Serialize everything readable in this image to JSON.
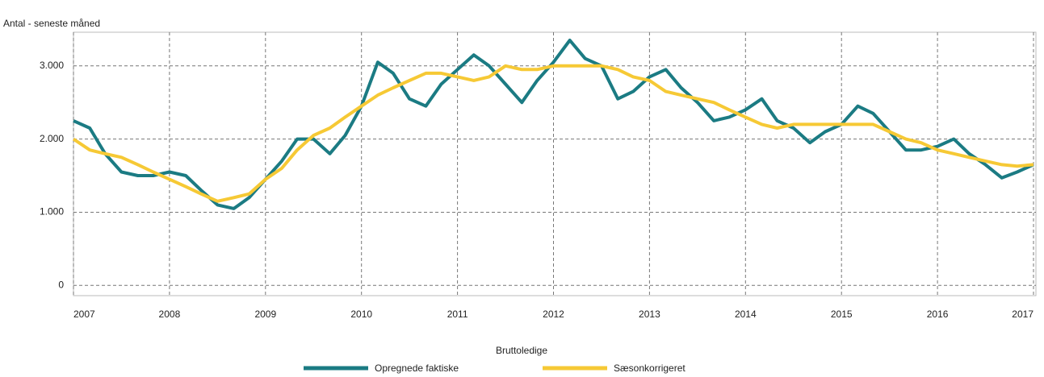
{
  "chart_data": {
    "type": "line",
    "y_label": "Antal - seneste måned",
    "legend_title": "Bruttoledige",
    "x": [
      2007,
      2007.17,
      2007.33,
      2007.5,
      2007.67,
      2007.83,
      2008,
      2008.17,
      2008.33,
      2008.5,
      2008.67,
      2008.83,
      2009,
      2009.17,
      2009.33,
      2009.5,
      2009.67,
      2009.83,
      2010,
      2010.17,
      2010.33,
      2010.5,
      2010.67,
      2010.83,
      2011,
      2011.17,
      2011.33,
      2011.5,
      2011.67,
      2011.83,
      2012,
      2012.17,
      2012.33,
      2012.5,
      2012.67,
      2012.83,
      2013,
      2013.17,
      2013.33,
      2013.5,
      2013.67,
      2013.83,
      2014,
      2014.17,
      2014.33,
      2014.5,
      2014.67,
      2014.83,
      2015,
      2015.17,
      2015.33,
      2015.5,
      2015.67,
      2015.83,
      2016,
      2016.17,
      2016.33,
      2016.5,
      2016.67,
      2016.83,
      2017
    ],
    "series": [
      {
        "name": "Opregnede faktiske",
        "color": "#1b7b83",
        "values": [
          2250,
          2150,
          1800,
          1550,
          1500,
          1500,
          1550,
          1500,
          1300,
          1100,
          1050,
          1200,
          1450,
          1700,
          2000,
          2000,
          1800,
          2050,
          2450,
          3050,
          2900,
          2550,
          2450,
          2750,
          2950,
          3150,
          3000,
          2750,
          2500,
          2800,
          3050,
          3350,
          3100,
          3000,
          2550,
          2650,
          2850,
          2950,
          2700,
          2500,
          2250,
          2300,
          2400,
          2550,
          2250,
          2150,
          1950,
          2100,
          2200,
          2450,
          2350,
          2100,
          1850,
          1850,
          1900,
          2000,
          1800,
          1650,
          1470,
          1550,
          1650
        ]
      },
      {
        "name": "Sæsonkorrigeret",
        "color": "#f6c935",
        "values": [
          2000,
          1850,
          1800,
          1750,
          1650,
          1550,
          1450,
          1350,
          1250,
          1150,
          1200,
          1250,
          1450,
          1600,
          1850,
          2050,
          2150,
          2300,
          2450,
          2600,
          2700,
          2800,
          2900,
          2900,
          2850,
          2800,
          2850,
          3000,
          2950,
          2950,
          3000,
          3000,
          3000,
          3000,
          2950,
          2850,
          2800,
          2650,
          2600,
          2550,
          2500,
          2400,
          2300,
          2200,
          2150,
          2200,
          2200,
          2200,
          2200,
          2200,
          2200,
          2100,
          2000,
          1950,
          1850,
          1800,
          1750,
          1700,
          1650,
          1630,
          1650
        ]
      }
    ],
    "xlim": [
      2007,
      2017
    ],
    "xticks": [
      2007,
      2008,
      2009,
      2010,
      2011,
      2012,
      2013,
      2014,
      2015,
      2016,
      2017
    ],
    "ylim": [
      -140,
      3460
    ],
    "yticks": [
      0,
      {
        "value": 1000,
        "label": "1.000"
      },
      {
        "value": 2000,
        "label": "2.000"
      },
      {
        "value": 3000,
        "label": "3.000"
      }
    ],
    "grid": true
  }
}
